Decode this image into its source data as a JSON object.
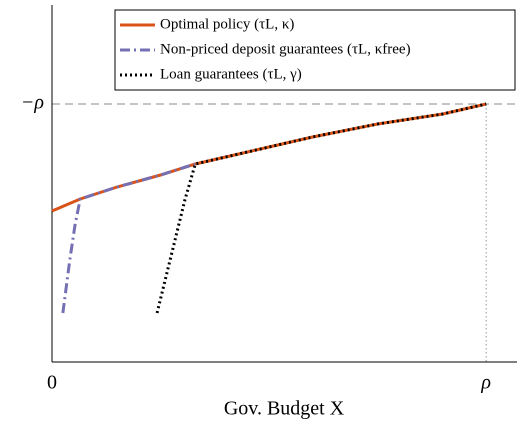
{
  "chart_data": {
    "type": "line",
    "xlabel": "Gov. Budget X",
    "xlim": [
      0,
      1.071
    ],
    "ylim": [
      -3.58,
      -0.01
    ],
    "xticks": [
      0,
      {
        "value": 1,
        "label": "ρ"
      }
    ],
    "yticks": [
      {
        "value": -1,
        "label": "−ρ"
      }
    ],
    "legend": "upper right",
    "series": [
      {
        "name": "Optimal policy (τL, κ)",
        "color": "#d95319",
        "style": "solid",
        "x": [
          0,
          0.065,
          0.15,
          0.25,
          0.33,
          0.45,
          0.6,
          0.75,
          0.9,
          1.0
        ],
        "values": [
          -2.07,
          -1.95,
          -1.83,
          -1.71,
          -1.6,
          -1.48,
          -1.33,
          -1.2,
          -1.1,
          -1.0
        ]
      },
      {
        "name": "Non-priced deposit guarantees (τL, κfree)",
        "color": "#7570b3",
        "style": "dashdot",
        "x": [
          0.025,
          0.041,
          0.053,
          0.065,
          0.15,
          0.25,
          0.33
        ],
        "values": [
          -3.09,
          -2.56,
          -2.21,
          -1.95,
          -1.83,
          -1.71,
          -1.6
        ]
      },
      {
        "name": "Loan guarantees (τL, γ)",
        "color": "#000000",
        "style": "dotted",
        "x": [
          0.242,
          0.272,
          0.306,
          0.33,
          0.45,
          0.6,
          0.75,
          0.9,
          1.0
        ],
        "values": [
          -3.09,
          -2.56,
          -1.96,
          -1.6,
          -1.48,
          -1.33,
          -1.2,
          -1.1,
          -1.0
        ]
      }
    ]
  }
}
